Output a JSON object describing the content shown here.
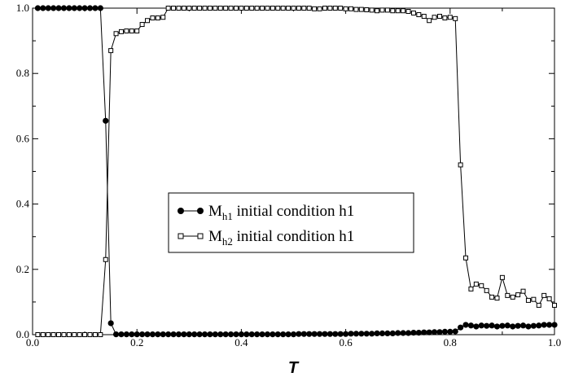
{
  "chart_data": {
    "type": "line",
    "xlabel": "T",
    "ylabel": "",
    "xlim": [
      0.0,
      1.0
    ],
    "ylim": [
      0.0,
      1.0
    ],
    "xticks": [
      "0.0",
      "0.2",
      "0.4",
      "0.6",
      "0.8",
      "1.0"
    ],
    "yticks": [
      "0.0",
      "0.2",
      "0.4",
      "0.6",
      "0.8",
      "1.0"
    ],
    "grid": false,
    "legend_position": "center",
    "series": [
      {
        "name": "M_h1 initial condition h1",
        "label_main": "M",
        "label_sub": "h1",
        "label_rest": " initial condition h1",
        "marker": "filled-circle",
        "color": "#000000",
        "x": [
          0.01,
          0.02,
          0.03,
          0.04,
          0.05,
          0.06,
          0.07,
          0.08,
          0.09,
          0.1,
          0.11,
          0.12,
          0.13,
          0.14,
          0.15,
          0.16,
          0.17,
          0.18,
          0.19,
          0.2,
          0.21,
          0.22,
          0.23,
          0.24,
          0.25,
          0.26,
          0.27,
          0.28,
          0.29,
          0.3,
          0.31,
          0.32,
          0.33,
          0.34,
          0.35,
          0.36,
          0.37,
          0.38,
          0.39,
          0.4,
          0.41,
          0.42,
          0.43,
          0.44,
          0.45,
          0.46,
          0.47,
          0.48,
          0.49,
          0.5,
          0.51,
          0.52,
          0.53,
          0.54,
          0.55,
          0.56,
          0.57,
          0.58,
          0.59,
          0.6,
          0.61,
          0.62,
          0.63,
          0.64,
          0.65,
          0.66,
          0.67,
          0.68,
          0.69,
          0.7,
          0.71,
          0.72,
          0.73,
          0.74,
          0.75,
          0.76,
          0.77,
          0.78,
          0.79,
          0.8,
          0.81,
          0.82,
          0.83,
          0.84,
          0.85,
          0.86,
          0.87,
          0.88,
          0.89,
          0.9,
          0.91,
          0.92,
          0.93,
          0.94,
          0.95,
          0.96,
          0.97,
          0.98,
          0.99,
          1.0
        ],
        "y": [
          1.0,
          1.0,
          1.0,
          1.0,
          1.0,
          1.0,
          1.0,
          1.0,
          1.0,
          1.0,
          1.0,
          1.0,
          1.0,
          0.655,
          0.035,
          0.001,
          0.001,
          0.001,
          0.001,
          0.001,
          0.001,
          0.001,
          0.001,
          0.001,
          0.001,
          0.001,
          0.001,
          0.001,
          0.001,
          0.001,
          0.001,
          0.001,
          0.001,
          0.001,
          0.001,
          0.001,
          0.001,
          0.001,
          0.001,
          0.001,
          0.001,
          0.001,
          0.001,
          0.001,
          0.001,
          0.001,
          0.001,
          0.001,
          0.001,
          0.001,
          0.002,
          0.002,
          0.002,
          0.002,
          0.002,
          0.002,
          0.002,
          0.002,
          0.002,
          0.002,
          0.003,
          0.003,
          0.003,
          0.003,
          0.003,
          0.004,
          0.004,
          0.004,
          0.004,
          0.005,
          0.005,
          0.005,
          0.006,
          0.006,
          0.007,
          0.007,
          0.008,
          0.008,
          0.009,
          0.009,
          0.01,
          0.022,
          0.03,
          0.028,
          0.025,
          0.028,
          0.027,
          0.028,
          0.025,
          0.027,
          0.028,
          0.025,
          0.027,
          0.028,
          0.025,
          0.027,
          0.028,
          0.03,
          0.03,
          0.03
        ]
      },
      {
        "name": "M_h2 initial condition h1",
        "label_main": "M",
        "label_sub": "h2",
        "label_rest": " initial condition h1",
        "marker": "open-square",
        "color": "#000000",
        "x": [
          0.01,
          0.02,
          0.03,
          0.04,
          0.05,
          0.06,
          0.07,
          0.08,
          0.09,
          0.1,
          0.11,
          0.12,
          0.13,
          0.14,
          0.15,
          0.16,
          0.17,
          0.18,
          0.19,
          0.2,
          0.21,
          0.22,
          0.23,
          0.24,
          0.25,
          0.26,
          0.27,
          0.28,
          0.29,
          0.3,
          0.31,
          0.32,
          0.33,
          0.34,
          0.35,
          0.36,
          0.37,
          0.38,
          0.39,
          0.4,
          0.41,
          0.42,
          0.43,
          0.44,
          0.45,
          0.46,
          0.47,
          0.48,
          0.49,
          0.5,
          0.51,
          0.52,
          0.53,
          0.54,
          0.55,
          0.56,
          0.57,
          0.58,
          0.59,
          0.6,
          0.61,
          0.62,
          0.63,
          0.64,
          0.65,
          0.66,
          0.67,
          0.68,
          0.69,
          0.7,
          0.71,
          0.72,
          0.73,
          0.74,
          0.75,
          0.76,
          0.77,
          0.78,
          0.79,
          0.8,
          0.81,
          0.82,
          0.83,
          0.84,
          0.85,
          0.86,
          0.87,
          0.88,
          0.89,
          0.9,
          0.91,
          0.92,
          0.93,
          0.94,
          0.95,
          0.96,
          0.97,
          0.98,
          0.99,
          1.0
        ],
        "y": [
          0.0,
          0.0,
          0.0,
          0.0,
          0.0,
          0.0,
          0.0,
          0.0,
          0.0,
          0.0,
          0.0,
          0.0,
          0.0,
          0.23,
          0.87,
          0.922,
          0.928,
          0.93,
          0.93,
          0.93,
          0.95,
          0.962,
          0.97,
          0.97,
          0.972,
          1.0,
          1.0,
          1.0,
          1.0,
          1.0,
          1.0,
          1.0,
          1.0,
          1.0,
          1.0,
          1.0,
          1.0,
          1.0,
          1.0,
          1.0,
          1.0,
          1.0,
          1.0,
          1.0,
          1.0,
          1.0,
          1.0,
          1.0,
          1.0,
          1.0,
          1.0,
          1.0,
          1.0,
          0.998,
          0.998,
          1.0,
          1.0,
          1.0,
          1.0,
          0.998,
          0.998,
          0.996,
          0.996,
          0.995,
          0.994,
          0.992,
          0.994,
          0.994,
          0.992,
          0.992,
          0.992,
          0.99,
          0.985,
          0.98,
          0.975,
          0.962,
          0.972,
          0.975,
          0.97,
          0.972,
          0.968,
          0.52,
          0.235,
          0.14,
          0.155,
          0.15,
          0.135,
          0.115,
          0.112,
          0.175,
          0.12,
          0.115,
          0.122,
          0.133,
          0.105,
          0.108,
          0.09,
          0.12,
          0.11,
          0.09
        ]
      }
    ]
  }
}
